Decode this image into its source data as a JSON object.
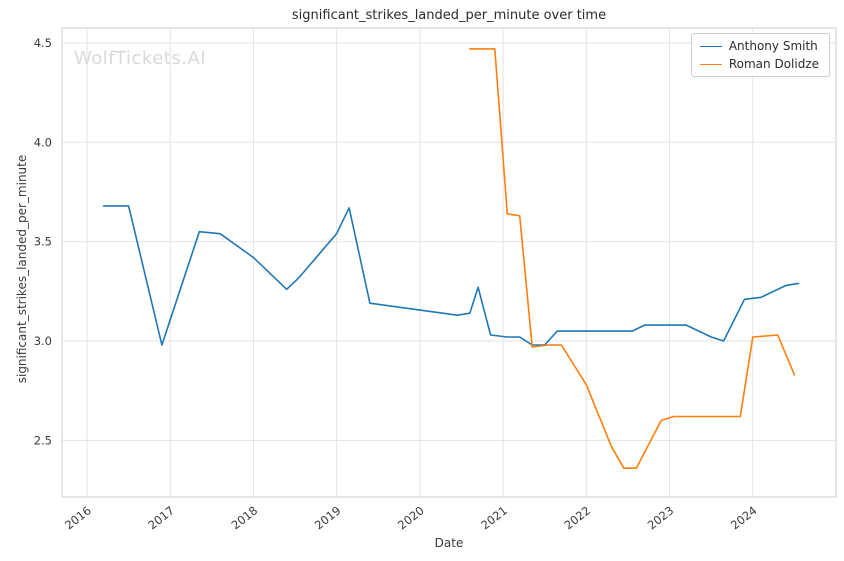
{
  "watermark": "WolfTickets.AI",
  "chart_data": {
    "type": "line",
    "title": "significant_strikes_landed_per_minute over time",
    "xlabel": "Date",
    "ylabel": "significant_strikes_landed_per_minute",
    "xlim": [
      2015.7,
      2025.0
    ],
    "ylim": [
      2.215,
      4.575
    ],
    "grid": true,
    "legend_position": "upper right",
    "xticks": {
      "values": [
        2016,
        2017,
        2018,
        2019,
        2020,
        2021,
        2022,
        2023,
        2024
      ],
      "labels": [
        "2016",
        "2017",
        "2018",
        "2019",
        "2020",
        "2021",
        "2022",
        "2023",
        "2024"
      ]
    },
    "yticks": {
      "values": [
        2.5,
        3.0,
        3.5,
        4.0,
        4.5
      ],
      "labels": [
        "2.5",
        "3.0",
        "3.5",
        "4.0",
        "4.5"
      ]
    },
    "series": [
      {
        "name": "Anthony Smith",
        "color": "#1f77b4",
        "x": [
          2016.2,
          2016.5,
          2016.9,
          2017.35,
          2017.6,
          2018.0,
          2018.4,
          2018.55,
          2019.0,
          2019.15,
          2019.4,
          2019.75,
          2020.1,
          2020.45,
          2020.6,
          2020.7,
          2020.85,
          2021.05,
          2021.2,
          2021.35,
          2021.5,
          2021.65,
          2022.0,
          2022.3,
          2022.55,
          2022.7,
          2023.0,
          2023.2,
          2023.5,
          2023.65,
          2023.9,
          2024.1,
          2024.4,
          2024.55
        ],
        "y": [
          3.68,
          3.68,
          2.98,
          3.55,
          3.54,
          3.42,
          3.26,
          3.32,
          3.54,
          3.67,
          3.19,
          3.17,
          3.15,
          3.13,
          3.14,
          3.27,
          3.03,
          3.02,
          3.02,
          2.98,
          2.98,
          3.05,
          3.05,
          3.05,
          3.05,
          3.08,
          3.08,
          3.08,
          3.02,
          3.0,
          3.21,
          3.22,
          3.28,
          3.29
        ]
      },
      {
        "name": "Roman Dolidze",
        "color": "#ff7f0e",
        "x": [
          2020.6,
          2020.9,
          2021.05,
          2021.2,
          2021.35,
          2021.55,
          2021.7,
          2022.0,
          2022.3,
          2022.45,
          2022.6,
          2022.9,
          2023.05,
          2023.4,
          2023.85,
          2024.0,
          2024.3,
          2024.5
        ],
        "y": [
          4.47,
          4.47,
          3.64,
          3.63,
          2.97,
          2.98,
          2.98,
          2.78,
          2.47,
          2.36,
          2.36,
          2.6,
          2.62,
          2.62,
          2.62,
          3.02,
          3.03,
          2.83
        ]
      }
    ]
  }
}
